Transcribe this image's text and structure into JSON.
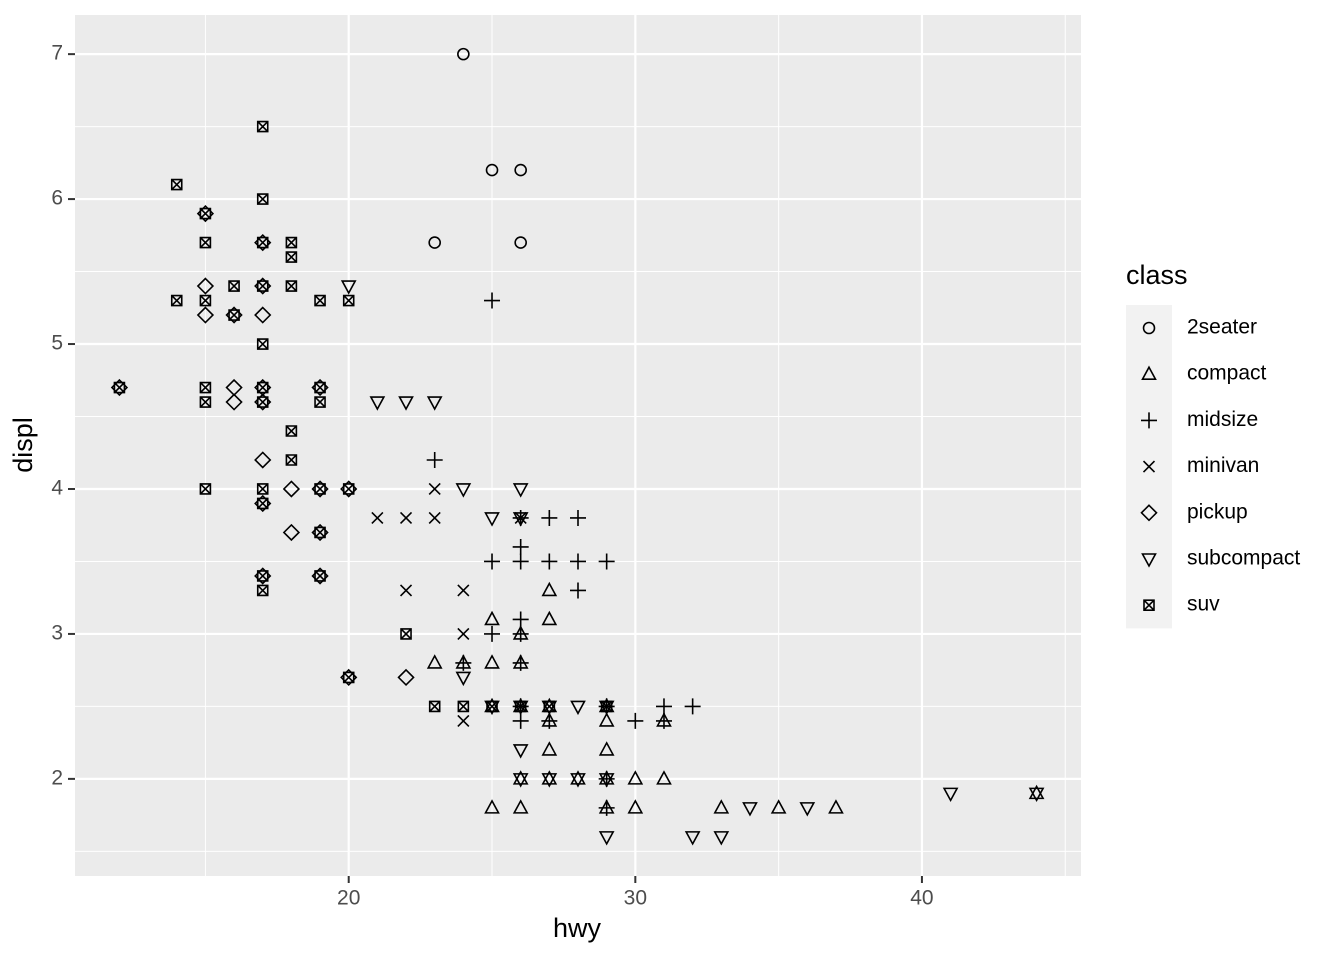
{
  "chart_data": {
    "type": "scatter",
    "x_label": "hwy",
    "y_label": "displ",
    "xlim": [
      10.45,
      45.55
    ],
    "ylim": [
      1.33,
      7.27
    ],
    "xticks": [
      20,
      30,
      40
    ],
    "yticks": [
      2,
      3,
      4,
      5,
      6,
      7
    ],
    "xminor": [
      15,
      25,
      35,
      45
    ],
    "yminor": [
      1.5,
      2.5,
      3.5,
      4.5,
      5.5,
      6.5
    ],
    "grid": true,
    "legend_title": "class",
    "legend_position": "right",
    "series": [
      {
        "name": "2seater",
        "shape": "circle",
        "color": "#000000",
        "x": [
          24,
          25,
          26,
          23,
          26
        ],
        "values": [
          7.0,
          6.2,
          6.2,
          5.7,
          5.7
        ]
      },
      {
        "name": "compact",
        "shape": "triangle",
        "color": "#000000",
        "x": [
          25,
          26,
          29,
          30,
          33,
          35,
          37,
          30,
          31,
          26,
          27,
          28,
          29,
          27,
          29,
          27,
          29,
          31,
          25,
          26,
          27,
          29,
          23,
          24,
          25,
          26,
          26,
          25,
          27,
          27,
          44
        ],
        "values": [
          1.8,
          1.8,
          1.8,
          1.8,
          1.8,
          1.8,
          1.8,
          2.0,
          2.0,
          2.0,
          2.0,
          2.0,
          2.0,
          2.2,
          2.2,
          2.4,
          2.4,
          2.4,
          2.5,
          2.5,
          2.5,
          2.5,
          2.8,
          2.8,
          2.8,
          2.8,
          3.0,
          3.1,
          3.1,
          3.3,
          1.9
        ]
      },
      {
        "name": "midsize",
        "shape": "plus",
        "color": "#000000",
        "x": [
          25,
          23,
          26,
          27,
          28,
          26,
          25,
          26,
          27,
          28,
          29,
          28,
          26,
          25,
          26,
          24,
          26,
          26,
          27,
          30,
          31,
          26,
          29,
          31,
          32,
          29,
          29
        ],
        "values": [
          5.3,
          4.2,
          3.8,
          3.8,
          3.8,
          3.6,
          3.5,
          3.5,
          3.5,
          3.5,
          3.5,
          3.3,
          3.1,
          3.0,
          3.0,
          2.8,
          2.8,
          2.4,
          2.4,
          2.4,
          2.4,
          2.5,
          2.5,
          2.5,
          2.5,
          1.8,
          2.0
        ]
      },
      {
        "name": "minivan",
        "shape": "cross",
        "color": "#000000",
        "x": [
          23,
          21,
          22,
          23,
          22,
          24,
          24,
          24,
          26
        ],
        "values": [
          4.0,
          3.8,
          3.8,
          3.8,
          3.3,
          3.3,
          3.0,
          2.4,
          3.8
        ]
      },
      {
        "name": "pickup",
        "shape": "diamond",
        "color": "#000000",
        "x": [
          12,
          15,
          15,
          15,
          16,
          17,
          17,
          17,
          16,
          16,
          17,
          17,
          19,
          17,
          18,
          17,
          18,
          19,
          17,
          19,
          20,
          20,
          22,
          19
        ],
        "values": [
          4.7,
          5.9,
          5.4,
          5.2,
          5.2,
          5.7,
          5.4,
          5.2,
          4.7,
          4.6,
          4.7,
          4.6,
          4.7,
          4.2,
          4.0,
          3.9,
          3.7,
          3.7,
          3.4,
          3.4,
          4.0,
          2.7,
          2.7,
          4.0
        ]
      },
      {
        "name": "subcompact",
        "shape": "triangle-down",
        "color": "#000000",
        "x": [
          20,
          21,
          22,
          23,
          24,
          26,
          25,
          26,
          24,
          26,
          27,
          28,
          29,
          26,
          26,
          29,
          27,
          28,
          29,
          32,
          33,
          34,
          36,
          41,
          44,
          25
        ],
        "values": [
          5.4,
          4.6,
          4.6,
          4.6,
          4.0,
          4.0,
          3.8,
          3.8,
          2.7,
          2.5,
          2.5,
          2.5,
          2.5,
          2.2,
          2.0,
          2.0,
          2.0,
          2.0,
          1.6,
          1.6,
          1.6,
          1.8,
          1.8,
          1.9,
          1.9,
          2.5
        ]
      },
      {
        "name": "suv",
        "shape": "square-cross",
        "color": "#000000",
        "x": [
          12,
          14,
          14,
          15,
          15,
          15,
          15,
          15,
          15,
          16,
          16,
          17,
          17,
          17,
          17,
          17,
          17,
          17,
          17,
          17,
          17,
          17,
          18,
          18,
          18,
          18,
          18,
          19,
          19,
          19,
          19,
          19,
          19,
          20,
          20,
          20,
          22,
          23,
          24,
          25,
          26,
          27,
          29
        ],
        "values": [
          4.7,
          6.1,
          5.3,
          5.9,
          5.7,
          5.3,
          4.7,
          4.6,
          4.0,
          5.4,
          5.2,
          6.5,
          6.0,
          5.7,
          5.4,
          5.0,
          4.7,
          4.6,
          4.0,
          3.9,
          3.4,
          3.3,
          5.7,
          5.6,
          5.4,
          4.4,
          4.2,
          5.3,
          4.7,
          4.6,
          4.0,
          3.7,
          3.4,
          5.3,
          4.0,
          2.7,
          3.0,
          2.5,
          2.5,
          2.5,
          2.5,
          2.5,
          2.5
        ]
      }
    ]
  }
}
